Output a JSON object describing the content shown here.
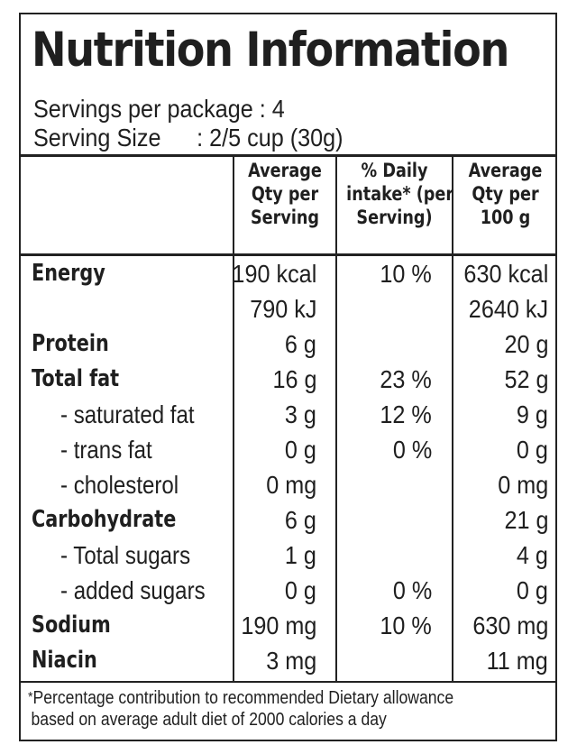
{
  "panel": {
    "title": "Nutrition Information",
    "servings_per_package": "Servings per package : 4",
    "serving_size_label": "Serving Size",
    "serving_size_value": ": 2/5 cup (30g)"
  },
  "columns": [
    {
      "lines": [
        "Average",
        "Qty per",
        "Serving"
      ]
    },
    {
      "lines": [
        "% Daily",
        "intake* (per",
        "Serving)"
      ]
    },
    {
      "lines": [
        "Average",
        "Qty per",
        "100 g"
      ]
    }
  ],
  "rows": [
    {
      "label": "Energy",
      "per_serving": "190 kcal",
      "daily": "10 %",
      "per_100g": "630 kcal"
    },
    {
      "label": "",
      "per_serving": "790 kJ",
      "daily": "",
      "per_100g": "2640 kJ"
    },
    {
      "label": "Protein",
      "per_serving": "6 g",
      "daily": "",
      "per_100g": "20 g"
    },
    {
      "label": "Total fat",
      "per_serving": "16 g",
      "daily": "23 %",
      "per_100g": "52 g"
    },
    {
      "label": "- saturated fat",
      "per_serving": "3 g",
      "daily": "12 %",
      "per_100g": "9 g"
    },
    {
      "label": "- trans fat",
      "per_serving": "0 g",
      "daily": "0 %",
      "per_100g": "0 g"
    },
    {
      "label": "- cholesterol",
      "per_serving": "0 mg",
      "daily": "",
      "per_100g": "0 mg"
    },
    {
      "label": "Carbohydrate",
      "per_serving": "6 g",
      "daily": "",
      "per_100g": "21 g"
    },
    {
      "label": "- Total sugars",
      "per_serving": "1 g",
      "daily": "",
      "per_100g": "4 g"
    },
    {
      "label": "- added sugars",
      "per_serving": "0 g",
      "daily": "0 %",
      "per_100g": "0 g"
    },
    {
      "label": "Sodium",
      "per_serving": "190 mg",
      "daily": "10 %",
      "per_100g": "630 mg"
    },
    {
      "label": "Niacin",
      "per_serving": "3 mg",
      "daily": "",
      "per_100g": "11 mg"
    }
  ],
  "footnote": {
    "star": "*",
    "line1": "Percentage contribution to recommended Dietary allowance",
    "line2": "based on average adult diet of 2000 calories a day"
  }
}
